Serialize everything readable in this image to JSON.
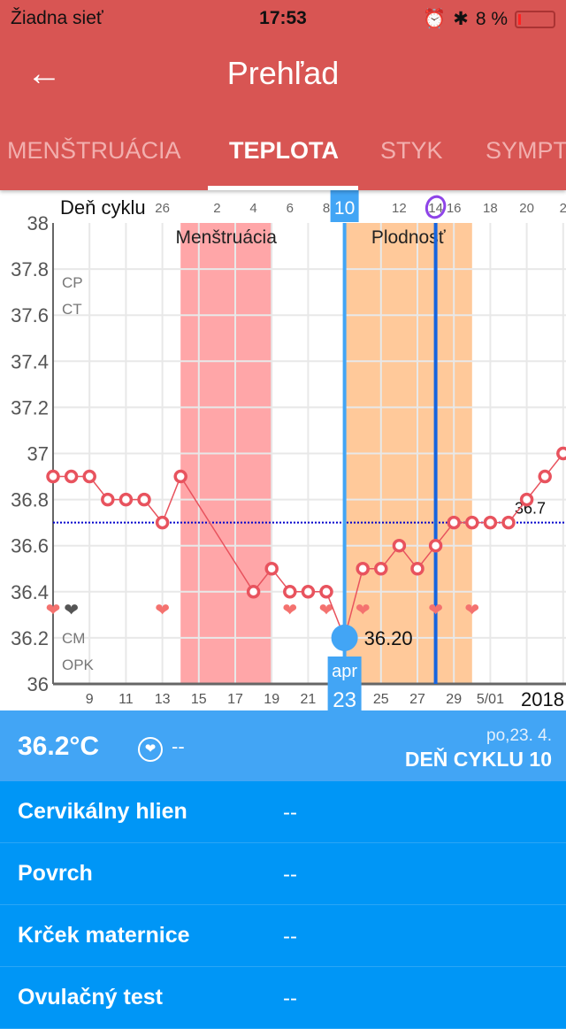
{
  "status": {
    "carrier": "Žiadna sieť",
    "time": "17:53",
    "battery": "8 %"
  },
  "header": {
    "title": "Prehľad",
    "back": "←"
  },
  "tabs": [
    {
      "label": "MENŠTRUÁCIA"
    },
    {
      "label": "TEPLOTA"
    },
    {
      "label": "STYK"
    },
    {
      "label": "SYMPT"
    }
  ],
  "info": {
    "temperature": "36.2°C",
    "sex": "--",
    "date": "po,23. 4.",
    "cycle_day": "DEŇ CYKLU 10"
  },
  "rows": [
    {
      "label": "Cervikálny hlien",
      "value": "--"
    },
    {
      "label": "Povrch",
      "value": "--"
    },
    {
      "label": "Krček maternice",
      "value": "--"
    },
    {
      "label": "Ovulačný test",
      "value": "--"
    }
  ],
  "colors": {
    "header": "#D85553",
    "menstruation": "#FFA6A8",
    "fertile": "#FFC99A",
    "selected": "#42A5F5",
    "line": "#E8535E",
    "coverline": "#0000CC"
  },
  "chart_data": {
    "type": "line",
    "title": "",
    "xlabel": "",
    "ylabel": "",
    "top_axis_label": "Deň cyklu",
    "ylim": [
      36,
      38
    ],
    "yticks": [
      "38",
      "37.8",
      "37.6",
      "37.4",
      "37.2",
      "37",
      "36.8",
      "36.6",
      "36.4",
      "36.2",
      "36"
    ],
    "x_unit": "day of April 2018 (31 = 5/01)",
    "xlim": [
      7,
      35
    ],
    "x_tick_labels": [
      {
        "x": 9,
        "label": "9"
      },
      {
        "x": 11,
        "label": "11"
      },
      {
        "x": 13,
        "label": "13"
      },
      {
        "x": 15,
        "label": "15"
      },
      {
        "x": 17,
        "label": "17"
      },
      {
        "x": 19,
        "label": "19"
      },
      {
        "x": 21,
        "label": "21"
      },
      {
        "x": 25,
        "label": "25"
      },
      {
        "x": 27,
        "label": "27"
      },
      {
        "x": 29,
        "label": "29"
      },
      {
        "x": 31,
        "label": "5/01"
      }
    ],
    "year_label": "2018",
    "cycle_day_labels": [
      {
        "x": 13,
        "label": "26"
      },
      {
        "x": 16,
        "label": "2"
      },
      {
        "x": 18,
        "label": "4"
      },
      {
        "x": 20,
        "label": "6"
      },
      {
        "x": 22,
        "label": "8"
      },
      {
        "x": 26,
        "label": "12"
      },
      {
        "x": 28,
        "label": "14"
      },
      {
        "x": 29,
        "label": "16"
      },
      {
        "x": 31,
        "label": "18"
      },
      {
        "x": 33,
        "label": "20"
      },
      {
        "x": 35,
        "label": "2"
      }
    ],
    "selected": {
      "x": 23,
      "value": 36.2,
      "label": "36.20",
      "month": "apr",
      "day": "23",
      "cycle_day": "10"
    },
    "ovulation_x": 28,
    "coverline": {
      "value": 36.7,
      "label": "36.7"
    },
    "bands": [
      {
        "name": "Menštruácia",
        "from": 14,
        "to": 19
      },
      {
        "name": "Plodnosť",
        "from": 23,
        "to": 30
      }
    ],
    "row_labels": [
      "CP",
      "CT",
      "CM",
      "OPK"
    ],
    "hearts": [
      {
        "x": 7,
        "color": "pink"
      },
      {
        "x": 8,
        "color": "gray"
      },
      {
        "x": 13,
        "color": "pink"
      },
      {
        "x": 20,
        "color": "pink"
      },
      {
        "x": 22,
        "color": "pink"
      },
      {
        "x": 24,
        "color": "pink"
      },
      {
        "x": 28,
        "color": "pink"
      },
      {
        "x": 30,
        "color": "pink"
      }
    ],
    "series": [
      {
        "name": "Teplota",
        "points": [
          [
            7,
            36.9
          ],
          [
            8,
            36.9
          ],
          [
            9,
            36.9
          ],
          [
            10,
            36.8
          ],
          [
            11,
            36.8
          ],
          [
            12,
            36.8
          ],
          [
            13,
            36.7
          ],
          [
            14,
            36.9
          ],
          [
            18,
            36.4
          ],
          [
            19,
            36.5
          ],
          [
            20,
            36.4
          ],
          [
            21,
            36.4
          ],
          [
            22,
            36.4
          ],
          [
            23,
            36.2
          ],
          [
            24,
            36.5
          ],
          [
            25,
            36.5
          ],
          [
            26,
            36.6
          ],
          [
            27,
            36.5
          ],
          [
            28,
            36.6
          ],
          [
            29,
            36.7
          ],
          [
            30,
            36.7
          ],
          [
            31,
            36.7
          ],
          [
            32,
            36.7
          ],
          [
            33,
            36.8
          ],
          [
            34,
            36.9
          ],
          [
            35,
            37.0
          ]
        ]
      }
    ]
  }
}
